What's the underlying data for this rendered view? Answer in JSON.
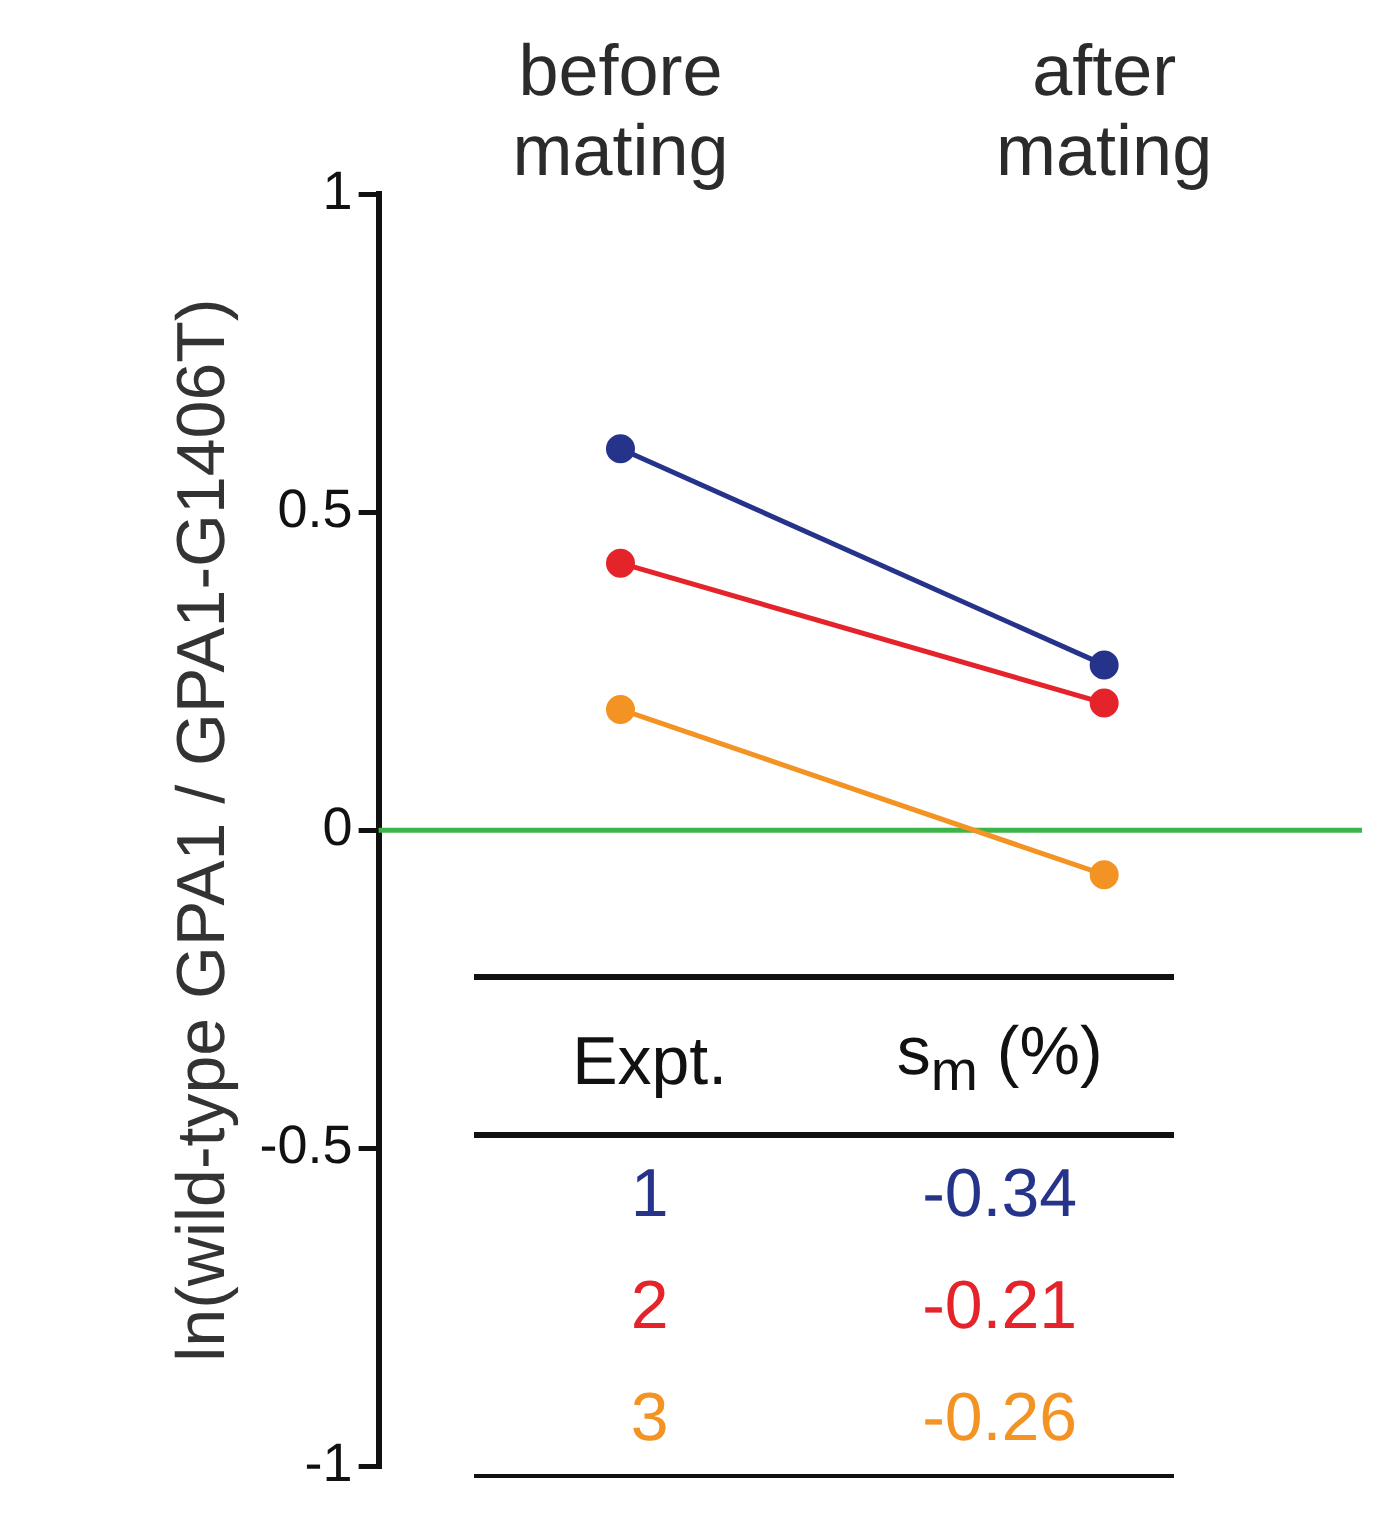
{
  "chart_data": {
    "type": "line",
    "ylabel": "ln(wild-type GPA1 / GPA1-G1406T)",
    "categories": [
      "before mating",
      "after mating"
    ],
    "series": [
      {
        "name": "1",
        "color": "#25338a",
        "values": [
          0.6,
          0.26
        ]
      },
      {
        "name": "2",
        "color": "#e4242a",
        "values": [
          0.42,
          0.2
        ]
      },
      {
        "name": "3",
        "color": "#f39323",
        "values": [
          0.19,
          -0.07
        ]
      }
    ],
    "ylim": [
      -1,
      1
    ],
    "yticks": [
      -1,
      -0.5,
      0,
      0.5,
      1
    ],
    "ref_lines": [
      {
        "axis": "y",
        "value": 0,
        "color": "#3cb44a"
      }
    ],
    "marker": "circle",
    "line_style": "solid",
    "grid": false,
    "legend": "bottom",
    "legend_title": "Expt.",
    "annotations": [
      "s$_{m}$ (%)",
      "-0.34",
      "-0.21",
      "-0.26"
    ]
  }
}
